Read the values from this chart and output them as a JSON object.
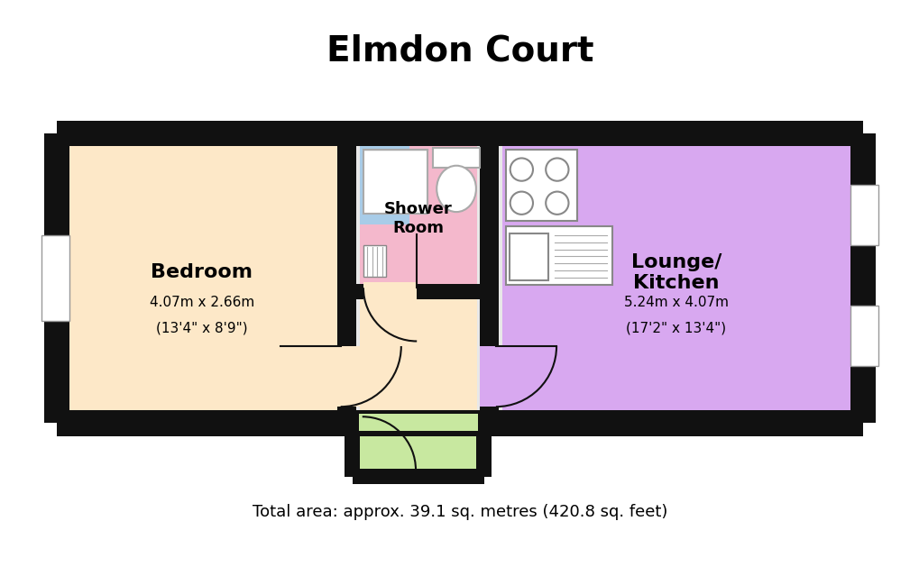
{
  "title": "Elmdon Court",
  "footer": "Total area: approx. 39.1 sq. metres (420.8 sq. feet)",
  "bg_color": "#ffffff",
  "wall_color": "#111111",
  "rooms": {
    "bedroom": {
      "color": "#fde8c8",
      "label": "Bedroom",
      "dim1": "4.07m x 2.66m",
      "dim2": "(13'4\" x 8'9\")"
    },
    "shower": {
      "color": "#f4b8cc",
      "label": "Shower\nRoom"
    },
    "hallway_mid": {
      "color": "#fde8c8"
    },
    "lounge": {
      "color": "#d8a8f0",
      "label": "Lounge/\nKitchen",
      "dim1": "5.24m x 4.07m",
      "dim2": "(17'2\" x 13'4\")"
    },
    "entrance": {
      "color": "#c8e8a0"
    },
    "blue_nook": {
      "color": "#a8cce8"
    }
  }
}
